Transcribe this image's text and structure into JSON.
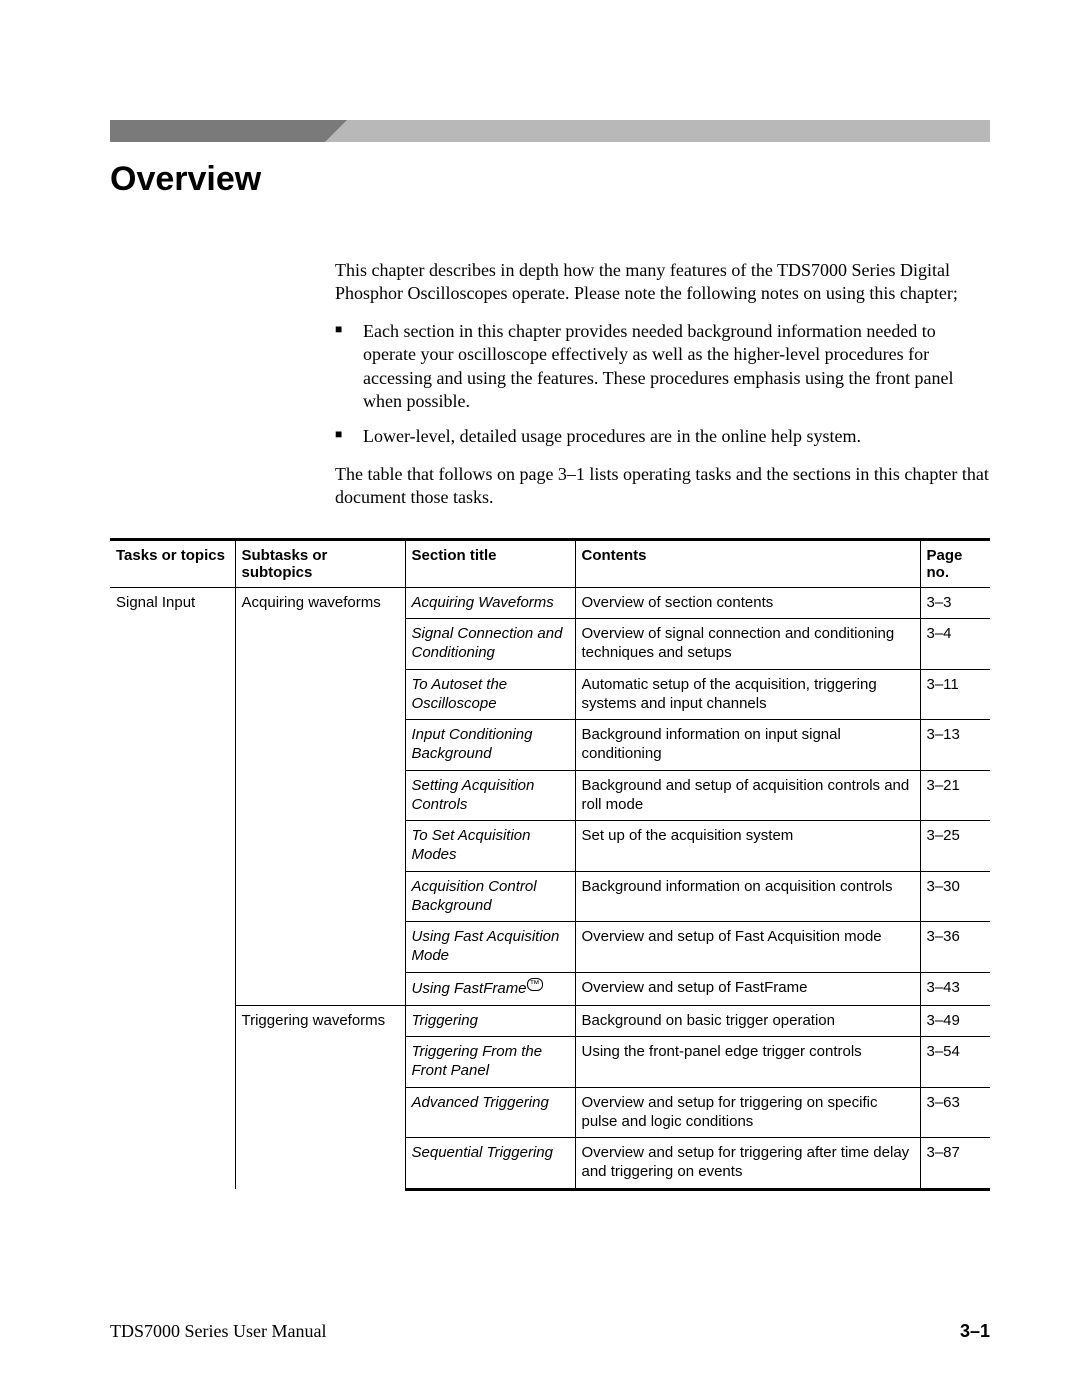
{
  "title": "Overview",
  "intro_p1": "This chapter describes in depth how the many features of the TDS7000 Series Digital Phosphor Oscilloscopes operate. Please note the following notes on using this chapter;",
  "bullet1": "Each section in this chapter provides needed background information needed to operate your oscilloscope effectively as well as the higher-level procedures for accessing and using the features. These procedures emphasis using the front panel when possible.",
  "bullet2": "Lower-level, detailed usage procedures are in the online help system.",
  "intro_p2": "The table that follows on page 3–1 lists operating tasks and the sections in this chapter that document those tasks.",
  "table": {
    "columns": [
      "Tasks or topics",
      "Subtasks or subtopics",
      "Section title",
      "Contents",
      "Page no."
    ],
    "task": "Signal Input",
    "sub1": "Acquiring waveforms",
    "sub2": "Triggering waveforms",
    "rows1": [
      {
        "section": "Acquiring Waveforms",
        "contents": "Overview of section contents",
        "page": "3–3"
      },
      {
        "section": "Signal Connection and Conditioning",
        "contents": "Overview of signal connection and conditioning techniques and setups",
        "page": "3–4"
      },
      {
        "section": "To Autoset the Oscilloscope",
        "contents": "Automatic setup of the acquisition, triggering systems and input channels",
        "page": "3–11"
      },
      {
        "section": "Input Conditioning Background",
        "contents": "Background information on input signal conditioning",
        "page": "3–13"
      },
      {
        "section": "Setting Acquisition Controls",
        "contents": "Background and setup of acquisition controls and roll mode",
        "page": "3–21"
      },
      {
        "section": "To Set Acquisition Modes",
        "contents": "Set up of the acquisition system",
        "page": "3–25"
      },
      {
        "section": "Acquisition Control Background",
        "contents": "Background information on acquisition controls",
        "page": "3–30"
      },
      {
        "section": "Using Fast Acquisition Mode",
        "contents": "Overview and setup of Fast Acquisition mode",
        "page": "3–36"
      },
      {
        "section": "Using FastFrame",
        "contents": "Overview and setup of FastFrame",
        "page": "3–43",
        "tm": true
      }
    ],
    "rows2": [
      {
        "section": "Triggering",
        "contents": "Background on basic trigger operation",
        "page": "3–49"
      },
      {
        "section": "Triggering From the Front Panel",
        "contents": "Using the front-panel edge trigger controls",
        "page": "3–54"
      },
      {
        "section": "Advanced Triggering",
        "contents": "Overview and setup for triggering on specific pulse and logic conditions",
        "page": "3–63"
      },
      {
        "section": "Sequential Triggering",
        "contents": "Overview and setup for triggering after time delay and triggering on events",
        "page": "3–87"
      }
    ]
  },
  "footer_left": "TDS7000 Series User Manual",
  "footer_right": "3–1"
}
